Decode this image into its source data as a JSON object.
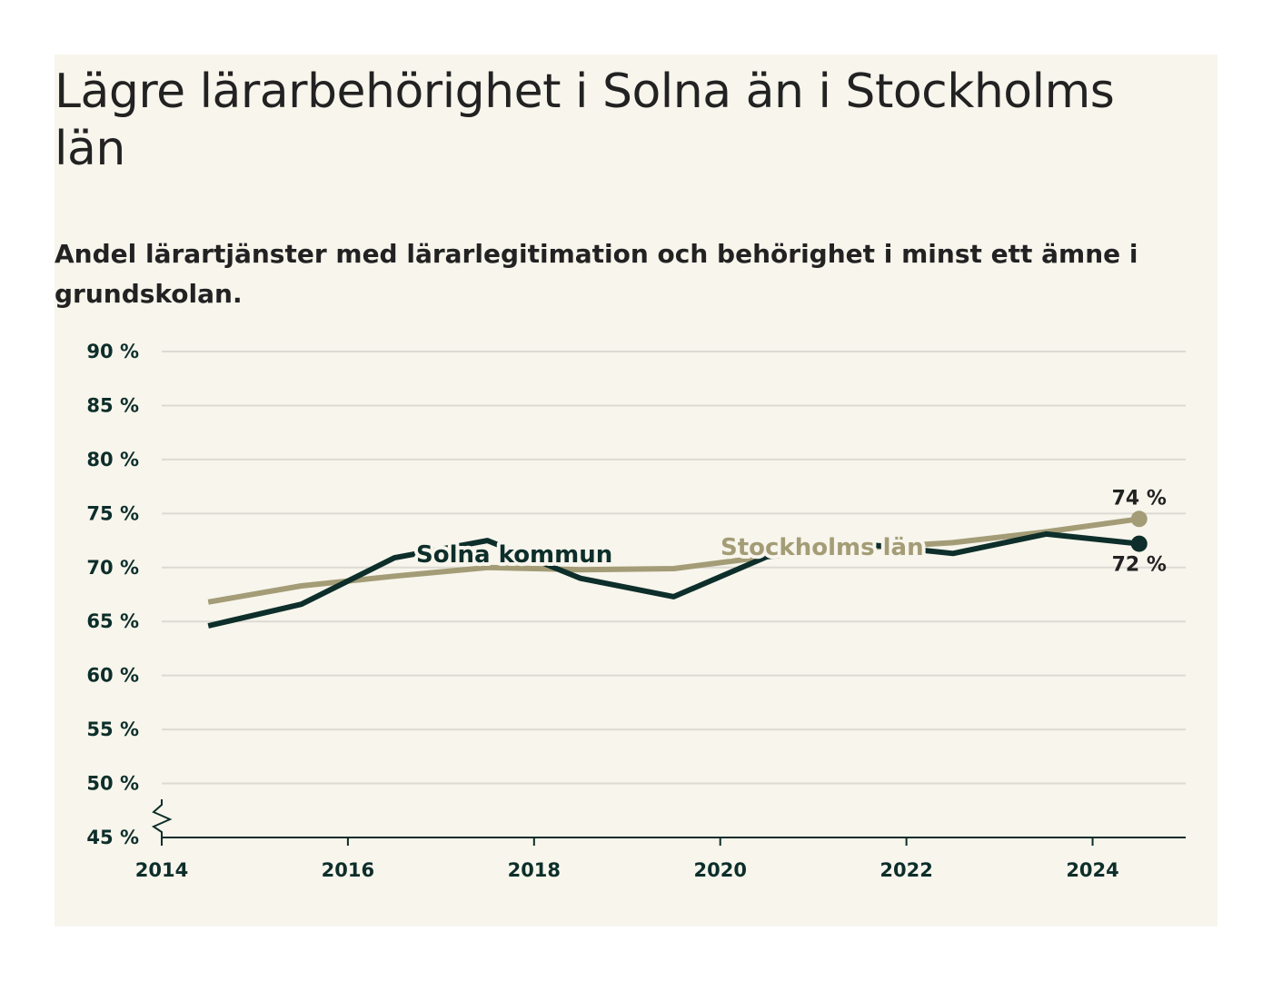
{
  "chart_data": {
    "type": "line",
    "title": "Lägre lärarbehörighet i Solna än i Stockholms län",
    "subtitle": "Andel lärartjänster med lärarlegitimation och behörighet i minst ett ämne i grundskolan.",
    "xlabel": "",
    "ylabel": "",
    "xlim": [
      2014,
      2025
    ],
    "ylim": [
      45,
      90
    ],
    "x_ticks": [
      2014,
      2016,
      2018,
      2020,
      2022,
      2024
    ],
    "x_tick_labels": [
      "2014",
      "2016",
      "2018",
      "2020",
      "2022",
      "2024"
    ],
    "y_ticks": [
      45,
      50,
      55,
      60,
      65,
      70,
      75,
      80,
      85,
      90
    ],
    "y_tick_labels": [
      "45 %",
      "50 %",
      "55 %",
      "60 %",
      "65 %",
      "70 %",
      "75 %",
      "80 %",
      "85 %",
      "90 %"
    ],
    "grid": true,
    "axis_break": true,
    "x": [
      2014.5,
      2015.5,
      2016.5,
      2017.5,
      2018.5,
      2019.5,
      2020.5,
      2021.5,
      2022.5,
      2023.5,
      2024.5
    ],
    "series": [
      {
        "name": "Stockholms län",
        "color": "#a39c76",
        "values": [
          66.8,
          68.3,
          69.2,
          70.0,
          69.8,
          69.9,
          71.0,
          71.8,
          72.3,
          73.3,
          74.5
        ],
        "end_label": "74 %"
      },
      {
        "name": "Solna kommun",
        "color": "#0d2e2a",
        "values": [
          64.6,
          66.6,
          70.9,
          72.5,
          69.0,
          67.3,
          71.0,
          72.2,
          71.3,
          73.1,
          72.2
        ],
        "end_label": "72 %"
      }
    ]
  }
}
